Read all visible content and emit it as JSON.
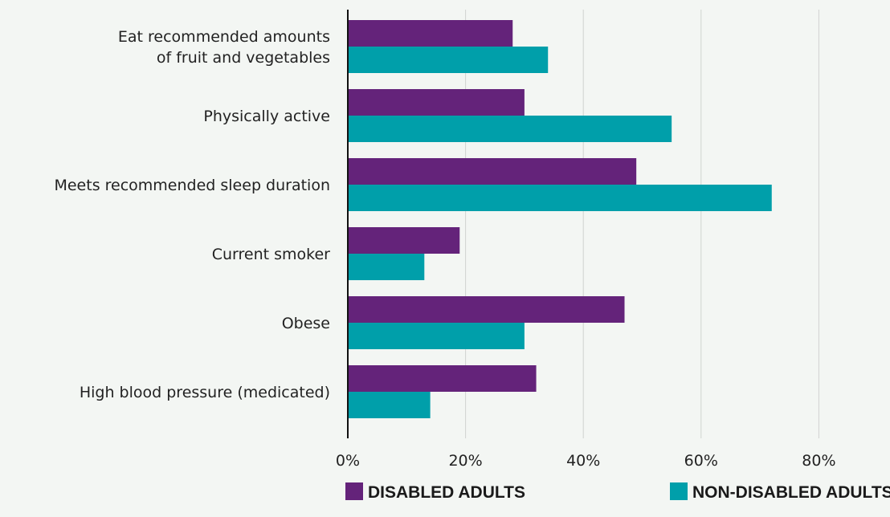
{
  "chart_data": {
    "type": "bar",
    "orientation": "horizontal",
    "categories": [
      [
        "Eat recommended amounts",
        "of fruit and vegetables"
      ],
      [
        "Physically active"
      ],
      [
        "Meets recommended sleep duration"
      ],
      [
        "Current smoker"
      ],
      [
        "Obese"
      ],
      [
        "High blood pressure (medicated)"
      ]
    ],
    "series": [
      {
        "name": "DISABLED ADULTS",
        "color": "#64237a",
        "values": [
          28,
          30,
          49,
          19,
          47,
          32
        ]
      },
      {
        "name": "NON-DISABLED ADULTS",
        "color": "#009faa",
        "values": [
          34,
          55,
          72,
          13,
          30,
          14
        ]
      }
    ],
    "xlim": [
      0,
      80
    ],
    "xticks": [
      0,
      20,
      40,
      60,
      80
    ],
    "tick_labels": [
      "0%",
      "20%",
      "40%",
      "60%",
      "80%"
    ],
    "grid": true,
    "legend_position": "bottom",
    "title": "",
    "xlabel": "",
    "ylabel": ""
  },
  "colors": {
    "background": "#f3f6f3",
    "gridline": "#d0d3d0",
    "axis": "#111111"
  }
}
